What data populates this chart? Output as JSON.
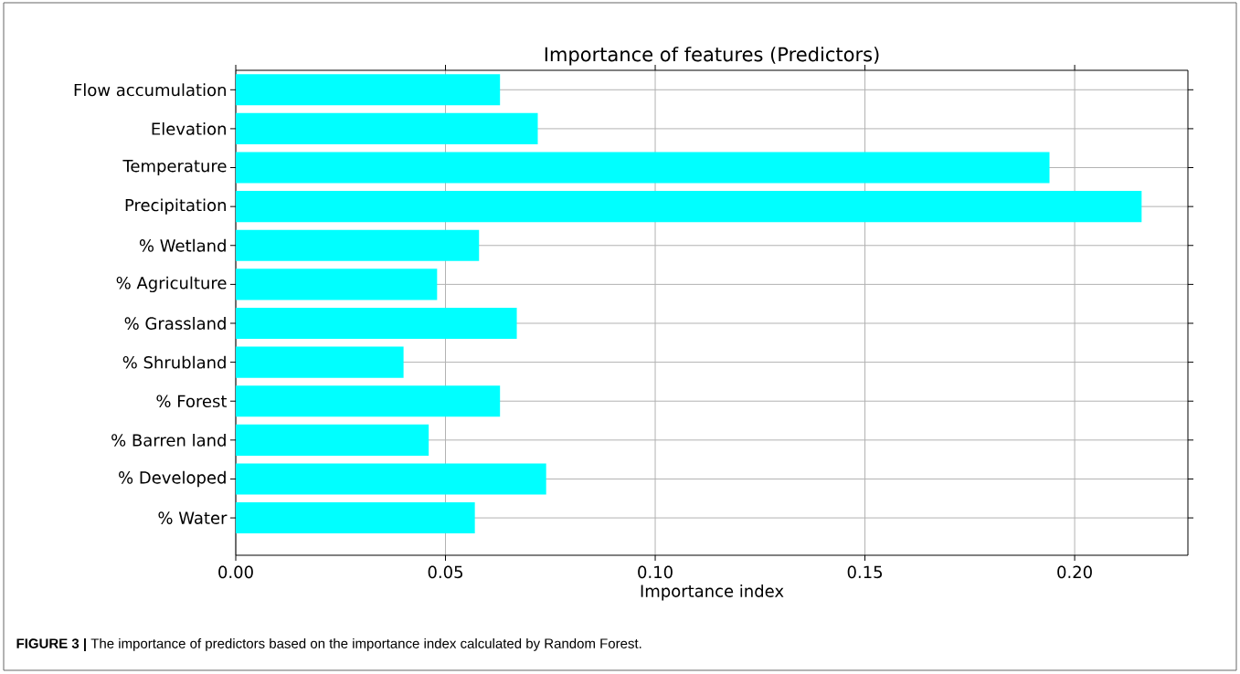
{
  "chart_data": {
    "type": "bar",
    "orientation": "horizontal",
    "title": "Importance of features (Predictors)",
    "xlabel": "Importance index",
    "categories": [
      "Flow accumulation",
      "Elevation",
      "Temperature",
      "Precipitation",
      "% Wetland",
      "% Agriculture",
      "% Grassland",
      "% Shrubland",
      "% Forest",
      "% Barren land",
      "% Developed",
      "% Water"
    ],
    "values": [
      0.063,
      0.072,
      0.194,
      0.216,
      0.058,
      0.048,
      0.067,
      0.04,
      0.063,
      0.046,
      0.074,
      0.057
    ],
    "color": "#00ffff",
    "xlim": [
      0,
      0.227
    ],
    "xticks": [
      {
        "value": 0,
        "label": "0.00"
      },
      {
        "value": 0.05,
        "label": "0.05"
      },
      {
        "value": 0.1,
        "label": "0.10"
      },
      {
        "value": 0.15,
        "label": "0.15"
      },
      {
        "value": 0.2,
        "label": "0.20"
      }
    ],
    "grid": true,
    "annotations": [
      "**FIGURE 3 |** The importance of predictors based on the importance index calculated by Random Forest."
    ]
  }
}
